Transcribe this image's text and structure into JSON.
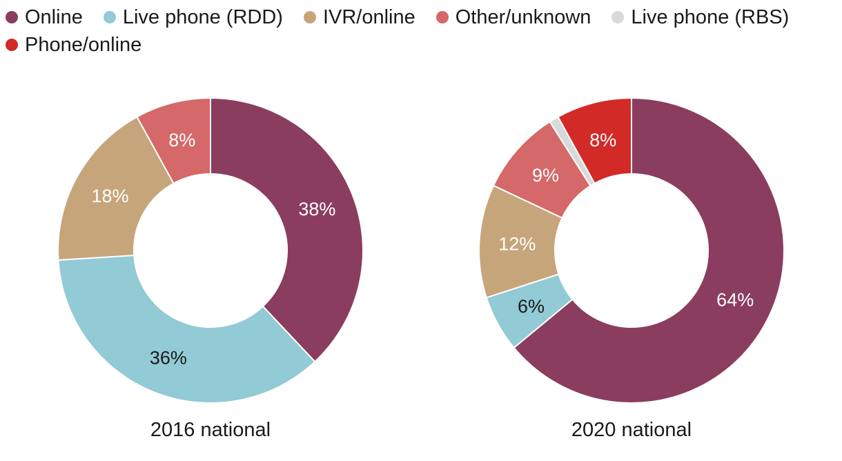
{
  "legend": [
    {
      "label": "Online",
      "color": "#8b3d5f"
    },
    {
      "label": "Live phone (RDD)",
      "color": "#92cad5"
    },
    {
      "label": "IVR/online",
      "color": "#c7a57b"
    },
    {
      "label": "Other/unknown",
      "color": "#d56868"
    },
    {
      "label": "Live phone (RBS)",
      "color": "#d9d9d9"
    },
    {
      "label": "Phone/online",
      "color": "#d22a26"
    }
  ],
  "chart_data": [
    {
      "type": "pie",
      "title": "2016 national",
      "slices": [
        {
          "name": "Online",
          "value": 38,
          "label": "38%",
          "color": "#8b3d5f",
          "text_color": "#ffffff"
        },
        {
          "name": "Live phone (RDD)",
          "value": 36,
          "label": "36%",
          "color": "#92cad5",
          "text_color": "#1a1a1a"
        },
        {
          "name": "IVR/online",
          "value": 18,
          "label": "18%",
          "color": "#c7a57b",
          "text_color": "#ffffff"
        },
        {
          "name": "Other/unknown",
          "value": 8,
          "label": "8%",
          "color": "#d56868",
          "text_color": "#ffffff"
        }
      ]
    },
    {
      "type": "pie",
      "title": "2020 national",
      "slices": [
        {
          "name": "Online",
          "value": 64,
          "label": "64%",
          "color": "#8b3d5f",
          "text_color": "#ffffff"
        },
        {
          "name": "Live phone (RDD)",
          "value": 6,
          "label": "6%",
          "color": "#92cad5",
          "text_color": "#1a1a1a"
        },
        {
          "name": "IVR/online",
          "value": 12,
          "label": "12%",
          "color": "#c7a57b",
          "text_color": "#ffffff"
        },
        {
          "name": "Other/unknown",
          "value": 9,
          "label": "9%",
          "color": "#d56868",
          "text_color": "#ffffff"
        },
        {
          "name": "Live phone (RBS)",
          "value": 1,
          "label": "",
          "color": "#d9d9d9",
          "text_color": "#1a1a1a"
        },
        {
          "name": "Phone/online",
          "value": 8,
          "label": "8%",
          "color": "#d22a26",
          "text_color": "#ffffff"
        }
      ]
    }
  ]
}
